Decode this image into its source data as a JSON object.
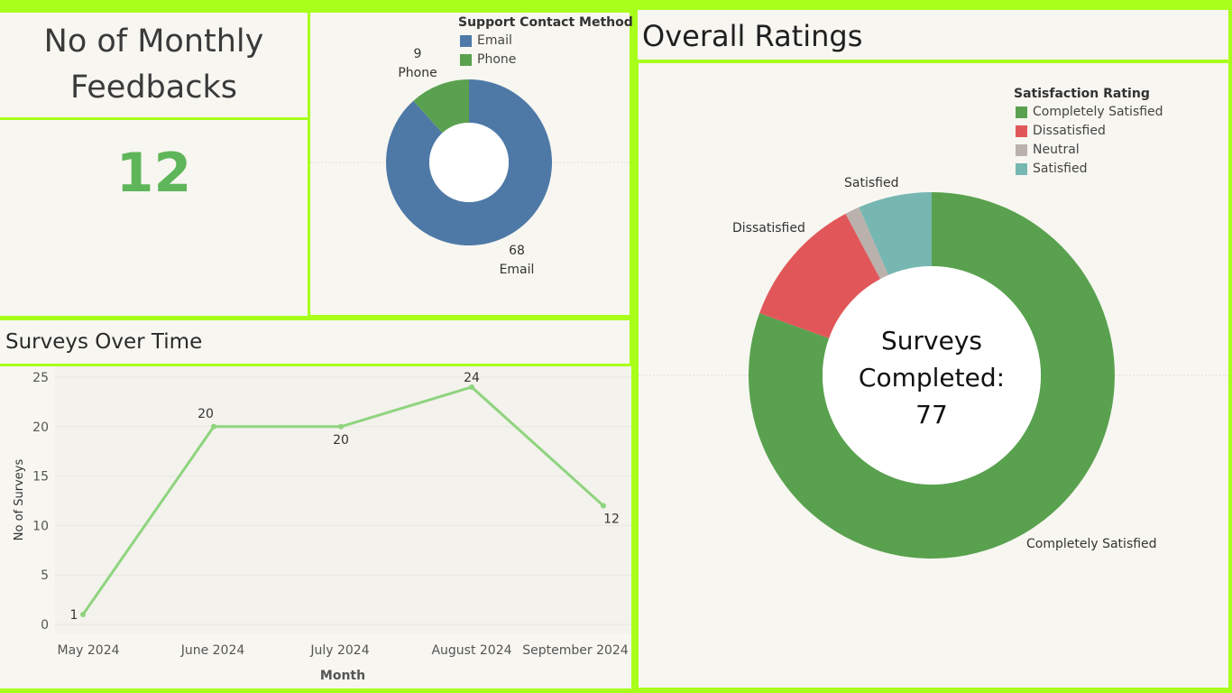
{
  "kpi": {
    "title": "No of Monthly Feedbacks",
    "value": "12"
  },
  "contact": {
    "legend_title": "Support Contact Method ..",
    "legend": [
      {
        "name": "Email",
        "color": "#4e79a7"
      },
      {
        "name": "Phone",
        "color": "#59a14f"
      }
    ],
    "labels": {
      "phone_value": "9",
      "phone_name": "Phone",
      "email_value": "68",
      "email_name": "Email"
    }
  },
  "surveys": {
    "title": "Surveys Over Time",
    "xlabel": "Month",
    "ylabel": "No of Surveys"
  },
  "ratings": {
    "title": "Overall Ratings",
    "legend_title": "Satisfaction Rating",
    "legend": [
      {
        "name": "Completely Satisfied",
        "color": "#59a14f"
      },
      {
        "name": "Dissatisfied",
        "color": "#e15759"
      },
      {
        "name": "Neutral",
        "color": "#bab0ac"
      },
      {
        "name": "Satisfied",
        "color": "#76b7b2"
      }
    ],
    "center_line1": "Surveys",
    "center_line2": "Completed:",
    "center_value": "77",
    "slice_labels": {
      "satisfied": "Satisfied",
      "dissatisfied": "Dissatisfied",
      "completely": "Completely Satisfied"
    }
  },
  "chart_data": [
    {
      "type": "pie",
      "title": "",
      "legend_title": "Support Contact Method ..",
      "categories": [
        "Email",
        "Phone"
      ],
      "values": [
        68,
        9
      ],
      "colors": [
        "#4e79a7",
        "#59a14f"
      ],
      "donut": true
    },
    {
      "type": "line",
      "title": "Surveys Over Time",
      "xlabel": "Month",
      "ylabel": "No of Surveys",
      "categories": [
        "May 2024",
        "June 2024",
        "July 2024",
        "August 2024",
        "September 2024"
      ],
      "values": [
        1,
        20,
        20,
        24,
        12
      ],
      "ylim": [
        0,
        25
      ],
      "yticks": [
        "0",
        "5",
        "10",
        "15",
        "20",
        "25"
      ],
      "color": "#8fd47f"
    },
    {
      "type": "pie",
      "title": "Overall Ratings",
      "legend_title": "Satisfaction Rating",
      "categories": [
        "Completely Satisfied",
        "Dissatisfied",
        "Neutral",
        "Satisfied"
      ],
      "values": [
        62,
        9,
        1,
        5
      ],
      "colors": [
        "#59a14f",
        "#e15759",
        "#bab0ac",
        "#76b7b2"
      ],
      "donut": true
    }
  ]
}
